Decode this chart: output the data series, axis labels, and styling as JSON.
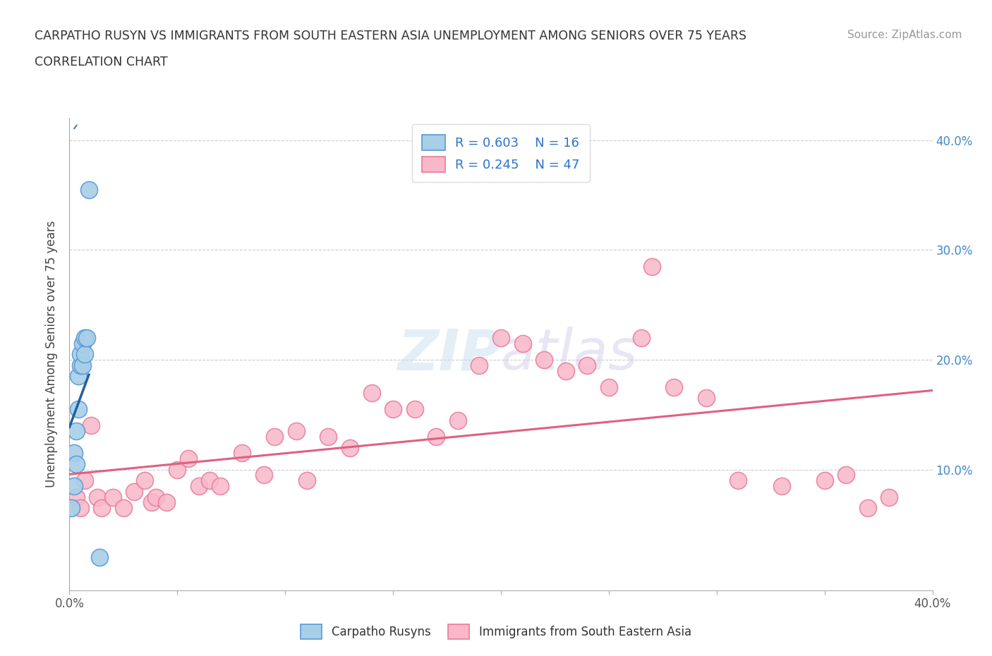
{
  "title_line1": "CARPATHO RUSYN VS IMMIGRANTS FROM SOUTH EASTERN ASIA UNEMPLOYMENT AMONG SENIORS OVER 75 YEARS",
  "title_line2": "CORRELATION CHART",
  "source_text": "Source: ZipAtlas.com",
  "ylabel": "Unemployment Among Seniors over 75 years",
  "xlim": [
    0.0,
    0.4
  ],
  "ylim": [
    -0.01,
    0.42
  ],
  "blue_R": "0.603",
  "blue_N": "16",
  "pink_R": "0.245",
  "pink_N": "47",
  "blue_color": "#a8cfe8",
  "pink_color": "#f9b8c8",
  "blue_edge": "#5b9bd5",
  "pink_edge": "#e87b9a",
  "blue_line_color": "#2060a0",
  "pink_line_color": "#e06080",
  "legend_label_blue": "Carpatho Rusyns",
  "legend_label_pink": "Immigrants from South Eastern Asia",
  "blue_scatter_x": [
    0.001,
    0.002,
    0.002,
    0.003,
    0.003,
    0.004,
    0.004,
    0.005,
    0.005,
    0.006,
    0.006,
    0.007,
    0.007,
    0.008,
    0.009,
    0.014
  ],
  "blue_scatter_y": [
    0.065,
    0.085,
    0.115,
    0.105,
    0.135,
    0.155,
    0.185,
    0.195,
    0.205,
    0.195,
    0.215,
    0.205,
    0.22,
    0.22,
    0.355,
    0.02
  ],
  "pink_scatter_x": [
    0.003,
    0.005,
    0.007,
    0.01,
    0.013,
    0.015,
    0.02,
    0.025,
    0.03,
    0.035,
    0.038,
    0.04,
    0.045,
    0.05,
    0.055,
    0.06,
    0.065,
    0.07,
    0.08,
    0.09,
    0.095,
    0.105,
    0.11,
    0.12,
    0.13,
    0.14,
    0.15,
    0.16,
    0.17,
    0.18,
    0.19,
    0.2,
    0.21,
    0.22,
    0.23,
    0.24,
    0.25,
    0.265,
    0.27,
    0.28,
    0.295,
    0.31,
    0.33,
    0.35,
    0.37,
    0.36,
    0.38
  ],
  "pink_scatter_y": [
    0.075,
    0.065,
    0.09,
    0.14,
    0.075,
    0.065,
    0.075,
    0.065,
    0.08,
    0.09,
    0.07,
    0.075,
    0.07,
    0.1,
    0.11,
    0.085,
    0.09,
    0.085,
    0.115,
    0.095,
    0.13,
    0.135,
    0.09,
    0.13,
    0.12,
    0.17,
    0.155,
    0.155,
    0.13,
    0.145,
    0.195,
    0.22,
    0.215,
    0.2,
    0.19,
    0.195,
    0.175,
    0.22,
    0.285,
    0.175,
    0.165,
    0.09,
    0.085,
    0.09,
    0.065,
    0.095,
    0.075
  ]
}
